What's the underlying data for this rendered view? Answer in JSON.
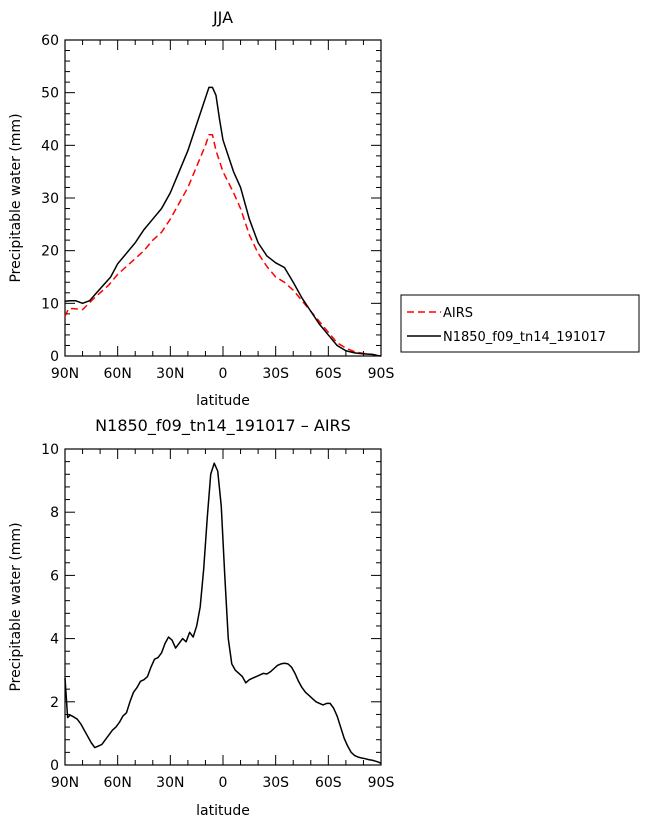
{
  "chart_data": [
    {
      "type": "line",
      "title": "JJA",
      "xlabel": "latitude",
      "ylabel": "Precipitable water (mm)",
      "xlim": [
        90,
        -90
      ],
      "ylim": [
        0,
        60
      ],
      "xticks": [
        90,
        60,
        30,
        0,
        -30,
        -60,
        -90
      ],
      "xticklabels": [
        "90N",
        "60N",
        "30N",
        "0",
        "30S",
        "60S",
        "90S"
      ],
      "yticks": [
        0,
        10,
        20,
        30,
        40,
        50,
        60
      ],
      "yticklabels": [
        "0",
        "10",
        "20",
        "30",
        "40",
        "50",
        "60"
      ],
      "legend": "right",
      "series": [
        {
          "name": "AIRS",
          "color": "#ff0000",
          "dash": "dashed",
          "x": [
            90,
            88,
            85,
            80,
            77,
            74,
            70,
            65,
            60,
            55,
            50,
            45,
            40,
            35,
            30,
            25,
            20,
            15,
            10,
            8,
            6,
            4,
            2,
            0,
            -3,
            -6,
            -10,
            -15,
            -20,
            -25,
            -30,
            -35,
            -40,
            -45,
            -50,
            -55,
            -60,
            -65,
            -70,
            -75,
            -80,
            -85,
            -88,
            -90
          ],
          "y": [
            7.5,
            9,
            9,
            8.8,
            9.8,
            10.8,
            12,
            13.5,
            15.5,
            17,
            18.5,
            20,
            22,
            23.5,
            26,
            29,
            32,
            36,
            40,
            42,
            42,
            39,
            37,
            35,
            33,
            31,
            28,
            23,
            19.5,
            17,
            15,
            14,
            12.5,
            10.5,
            8.5,
            6.5,
            4.5,
            2.5,
            1.5,
            0.8,
            0.5,
            0.3,
            0.1,
            0
          ]
        },
        {
          "name": "N1850_f09_tn14_191017",
          "color": "#000000",
          "dash": "solid",
          "x": [
            90,
            87,
            84,
            80,
            76,
            72,
            68,
            64,
            60,
            55,
            50,
            45,
            40,
            35,
            30,
            25,
            20,
            15,
            10,
            8,
            6,
            4,
            2,
            0,
            -3,
            -6,
            -10,
            -15,
            -20,
            -25,
            -30,
            -35,
            -40,
            -45,
            -50,
            -55,
            -60,
            -65,
            -70,
            -75,
            -80,
            -85,
            -88,
            -90
          ],
          "y": [
            10.4,
            10.5,
            10.5,
            10,
            10.5,
            12,
            13.5,
            15,
            17.5,
            19.5,
            21.5,
            24,
            26,
            28,
            31,
            35,
            39,
            44,
            49,
            51,
            51,
            49.5,
            45,
            41,
            38,
            35,
            32,
            26,
            21.5,
            19,
            17.7,
            16.8,
            14,
            11,
            8.5,
            6,
            4,
            2,
            1,
            0.6,
            0.4,
            0.3,
            0.1,
            0
          ]
        }
      ]
    },
    {
      "type": "line",
      "title": "N1850_f09_tn14_191017 – AIRS",
      "xlabel": "latitude",
      "ylabel": "Precipitable water (mm)",
      "xlim": [
        90,
        -90
      ],
      "ylim": [
        0,
        10
      ],
      "xticks": [
        90,
        60,
        30,
        0,
        -30,
        -60,
        -90
      ],
      "xticklabels": [
        "90N",
        "60N",
        "30N",
        "0",
        "30S",
        "60S",
        "90S"
      ],
      "yticks": [
        0,
        2,
        4,
        6,
        8,
        10
      ],
      "yticklabels": [
        "0",
        "2",
        "4",
        "6",
        "8",
        "10"
      ],
      "series": [
        {
          "color": "#000000",
          "dash": "solid",
          "x": [
            90,
            88.5,
            87,
            85,
            83,
            81,
            79,
            77,
            75,
            73,
            71,
            69,
            67,
            65,
            63,
            61,
            59,
            57,
            55,
            53,
            51,
            49,
            47,
            45,
            43,
            41,
            39,
            37,
            35,
            33,
            31,
            29,
            27,
            25,
            23,
            21,
            19,
            17,
            15,
            13,
            11,
            9,
            7,
            5,
            3,
            1,
            -1,
            -3,
            -5,
            -7,
            -9,
            -11,
            -13,
            -15,
            -17,
            -19,
            -21,
            -23,
            -25,
            -27,
            -29,
            -31,
            -33,
            -35,
            -37,
            -39,
            -41,
            -43,
            -45,
            -47,
            -49,
            -51,
            -53,
            -55,
            -57,
            -59,
            -61,
            -63,
            -65,
            -67,
            -69,
            -71,
            -73,
            -75,
            -77,
            -79,
            -81,
            -83,
            -85,
            -87,
            -89,
            -90
          ],
          "y": [
            2.75,
            1.5,
            1.58,
            1.52,
            1.45,
            1.3,
            1.1,
            0.9,
            0.7,
            0.55,
            0.6,
            0.65,
            0.8,
            0.95,
            1.1,
            1.2,
            1.35,
            1.55,
            1.65,
            2.0,
            2.3,
            2.45,
            2.65,
            2.7,
            2.8,
            3.1,
            3.35,
            3.4,
            3.55,
            3.85,
            4.05,
            3.95,
            3.7,
            3.85,
            4.0,
            3.9,
            4.2,
            4.05,
            4.4,
            5.0,
            6.2,
            7.8,
            9.2,
            9.55,
            9.3,
            8.2,
            6.0,
            4.0,
            3.2,
            3.0,
            2.9,
            2.8,
            2.6,
            2.7,
            2.75,
            2.8,
            2.85,
            2.9,
            2.88,
            2.95,
            3.05,
            3.15,
            3.2,
            3.22,
            3.2,
            3.1,
            2.9,
            2.65,
            2.45,
            2.3,
            2.2,
            2.1,
            2.0,
            1.95,
            1.9,
            1.95,
            1.95,
            1.8,
            1.55,
            1.2,
            0.85,
            0.6,
            0.4,
            0.3,
            0.25,
            0.22,
            0.2,
            0.17,
            0.15,
            0.12,
            0.08,
            0.05
          ]
        }
      ]
    }
  ]
}
